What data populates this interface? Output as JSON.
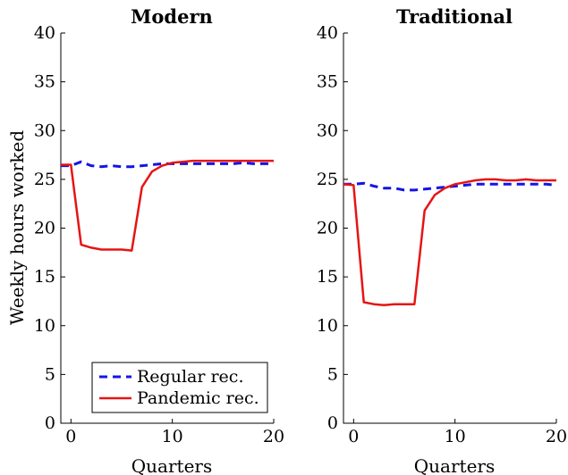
{
  "colors": {
    "regular": "#1414e6",
    "pandemic": "#e61414"
  },
  "chart_data": [
    {
      "type": "line",
      "title": "Modern",
      "xlabel": "Quarters",
      "ylabel": "Weekly hours worked",
      "xlim": [
        -1,
        20
      ],
      "ylim": [
        0,
        40
      ],
      "xticks": [
        0,
        10,
        20
      ],
      "yticks": [
        0,
        5,
        10,
        15,
        20,
        25,
        30,
        35,
        40
      ],
      "x": [
        -1,
        0,
        1,
        2,
        3,
        4,
        5,
        6,
        7,
        8,
        9,
        10,
        11,
        12,
        13,
        14,
        15,
        16,
        17,
        18,
        19,
        20
      ],
      "legend": {
        "show": true,
        "placement": "bottom-center"
      },
      "series": [
        {
          "name": "Regular rec.",
          "style": "dashed",
          "values": [
            26.4,
            26.4,
            26.8,
            26.4,
            26.3,
            26.4,
            26.3,
            26.3,
            26.4,
            26.5,
            26.6,
            26.6,
            26.6,
            26.6,
            26.6,
            26.6,
            26.6,
            26.6,
            26.7,
            26.6,
            26.6,
            26.6
          ]
        },
        {
          "name": "Pandemic rec.",
          "style": "solid",
          "values": [
            26.5,
            26.5,
            18.3,
            18.0,
            17.8,
            17.8,
            17.8,
            17.7,
            24.2,
            25.8,
            26.4,
            26.7,
            26.8,
            26.9,
            26.9,
            26.9,
            26.9,
            26.9,
            26.9,
            26.9,
            26.9,
            26.9
          ]
        }
      ]
    },
    {
      "type": "line",
      "title": "Traditional",
      "xlabel": "Quarters",
      "ylabel": "",
      "xlim": [
        -1,
        20
      ],
      "ylim": [
        0,
        40
      ],
      "xticks": [
        0,
        10,
        20
      ],
      "yticks": [
        0,
        5,
        10,
        15,
        20,
        25,
        30,
        35,
        40
      ],
      "x": [
        -1,
        0,
        1,
        2,
        3,
        4,
        5,
        6,
        7,
        8,
        9,
        10,
        11,
        12,
        13,
        14,
        15,
        16,
        17,
        18,
        19,
        20
      ],
      "legend": {
        "show": false
      },
      "series": [
        {
          "name": "Regular rec.",
          "style": "dashed",
          "values": [
            24.5,
            24.5,
            24.6,
            24.3,
            24.1,
            24.1,
            23.9,
            23.9,
            24.0,
            24.1,
            24.2,
            24.3,
            24.4,
            24.5,
            24.5,
            24.5,
            24.5,
            24.5,
            24.5,
            24.5,
            24.5,
            24.4
          ]
        },
        {
          "name": "Pandemic rec.",
          "style": "solid",
          "values": [
            24.5,
            24.4,
            12.4,
            12.2,
            12.1,
            12.2,
            12.2,
            12.2,
            21.8,
            23.4,
            24.1,
            24.5,
            24.7,
            24.9,
            25.0,
            25.0,
            24.9,
            24.9,
            25.0,
            24.9,
            24.9,
            24.9
          ]
        }
      ]
    }
  ]
}
